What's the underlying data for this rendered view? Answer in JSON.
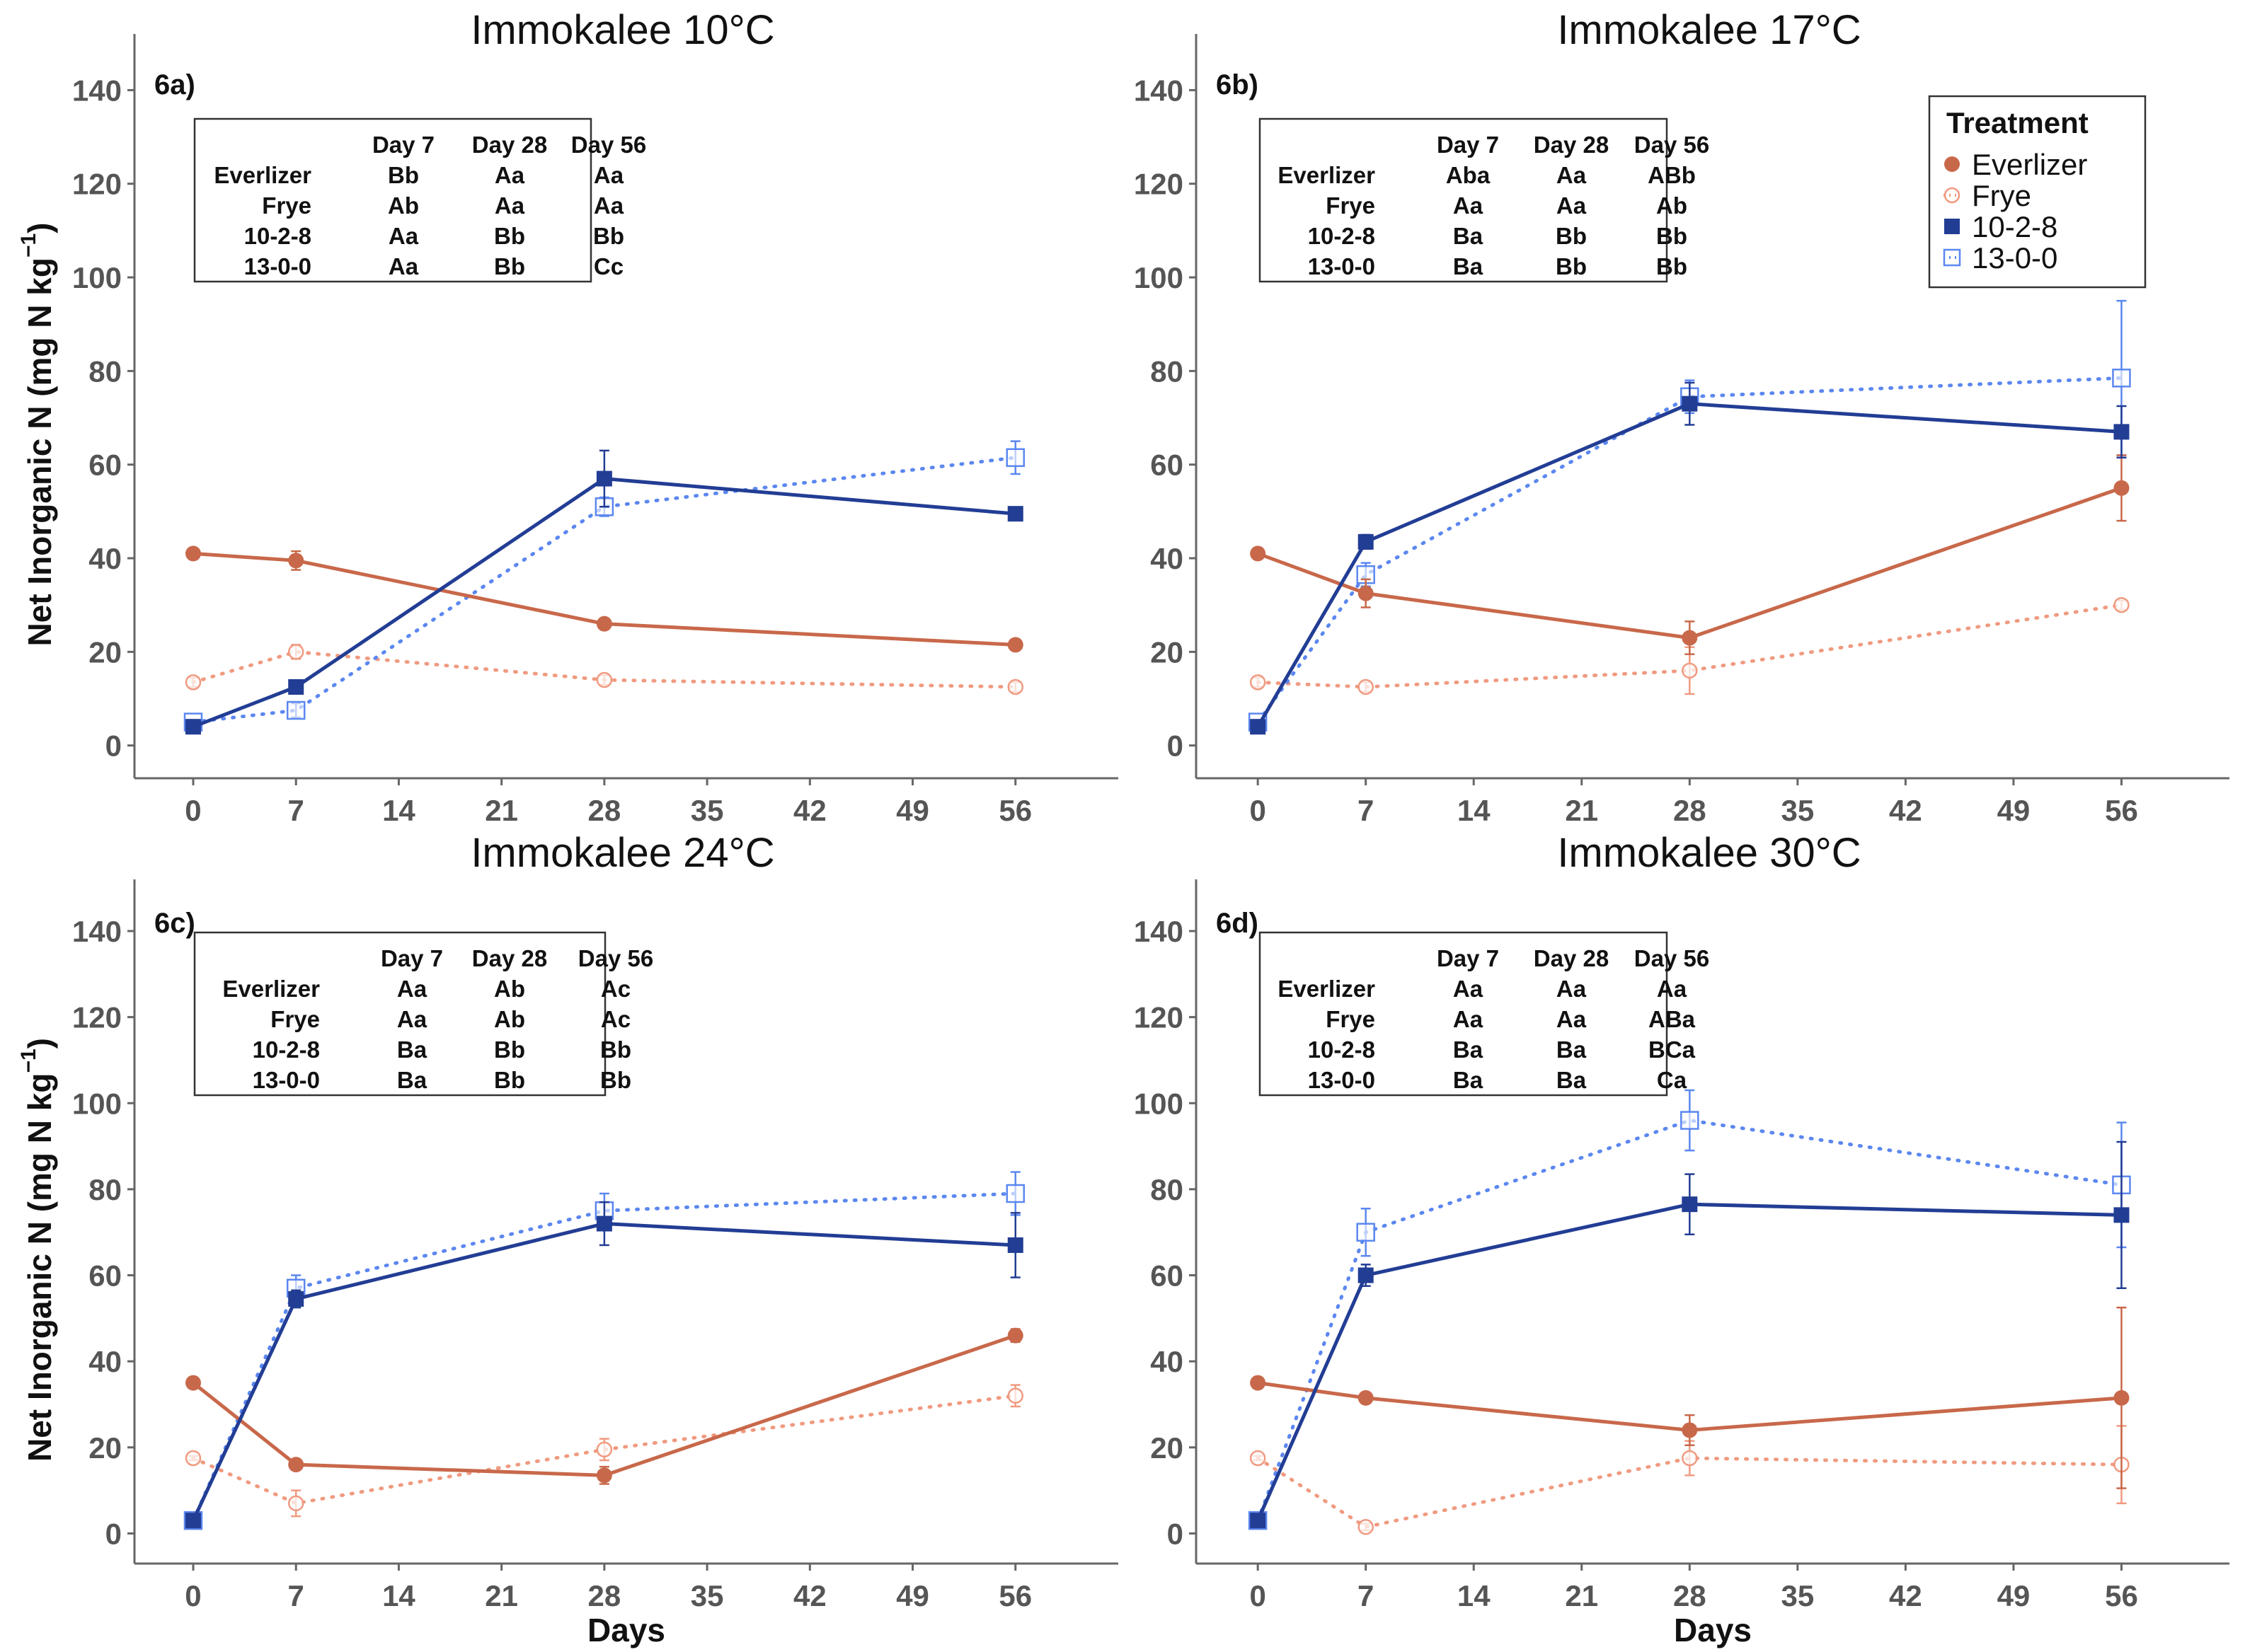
{
  "figure": {
    "ylabel_main": "Net Inorganic N (mg N kg",
    "ylabel_sup": "−1",
    "ylabel_close": ")",
    "xlabel": "Days"
  },
  "legend": {
    "title": "Treatment",
    "items": [
      {
        "label": "Everlizer",
        "color": "#c8684a",
        "marker": "filled-circle",
        "line": "solid"
      },
      {
        "label": "Frye",
        "color": "#f09a80",
        "marker": "open-circle",
        "line": "dotted"
      },
      {
        "label": "10-2-8",
        "color": "#223d94",
        "marker": "filled-square",
        "line": "solid"
      },
      {
        "label": "13-0-0",
        "color": "#5b87f0",
        "marker": "open-square",
        "line": "dotted"
      }
    ]
  },
  "chart_data": [
    {
      "type": "line",
      "panel": "6a)",
      "title": "Immokalee 10°C",
      "xlabel": "",
      "ylabel": "Net Inorganic N (mg N kg−1)",
      "xticks": [
        0,
        7,
        14,
        21,
        28,
        35,
        42,
        49,
        56
      ],
      "yticks": [
        0,
        20,
        40,
        60,
        80,
        100,
        120,
        140
      ],
      "xlim": [
        -4,
        63
      ],
      "ylim": [
        -7,
        152
      ],
      "x": [
        0,
        7,
        28,
        56
      ],
      "series": [
        {
          "name": "Everlizer",
          "values": [
            41,
            39.5,
            26,
            21.5
          ],
          "err": [
            0,
            2,
            0.8,
            0.6
          ]
        },
        {
          "name": "Frye",
          "values": [
            13.5,
            20,
            14,
            12.5
          ],
          "err": [
            1,
            1.5,
            1,
            1
          ]
        },
        {
          "name": "10-2-8",
          "values": [
            4,
            12.5,
            57,
            49.5
          ],
          "err": [
            0,
            1,
            6,
            1
          ]
        },
        {
          "name": "13-0-0",
          "values": [
            5,
            7.5,
            51,
            61.5
          ],
          "err": [
            0.5,
            1.5,
            2,
            3.5
          ]
        }
      ],
      "stats_table": {
        "header": [
          "",
          "Day 7",
          "Day 28",
          "Day 56"
        ],
        "rows": [
          [
            "Everlizer",
            "Bb",
            "Aa",
            "Aa"
          ],
          [
            "Frye",
            "Ab",
            "Aa",
            "Aa"
          ],
          [
            "10-2-8",
            "Aa",
            "Bb",
            "Bb"
          ],
          [
            "13-0-0",
            "Aa",
            "Bb",
            "Cc"
          ]
        ]
      }
    },
    {
      "type": "line",
      "panel": "6b)",
      "title": "Immokalee 17°C",
      "xlabel": "",
      "ylabel": "",
      "xticks": [
        0,
        7,
        14,
        21,
        28,
        35,
        42,
        49,
        56
      ],
      "yticks": [
        0,
        20,
        40,
        60,
        80,
        100,
        120,
        140
      ],
      "xlim": [
        -4,
        63
      ],
      "ylim": [
        -7,
        152
      ],
      "x": [
        0,
        7,
        28,
        56
      ],
      "series": [
        {
          "name": "Everlizer",
          "values": [
            41,
            32.5,
            23,
            55
          ],
          "err": [
            0,
            3,
            3.5,
            7
          ]
        },
        {
          "name": "Frye",
          "values": [
            13.5,
            12.5,
            16,
            30
          ],
          "err": [
            1,
            1,
            5,
            1
          ]
        },
        {
          "name": "10-2-8",
          "values": [
            4,
            43.5,
            73,
            67
          ],
          "err": [
            0,
            1.5,
            4.5,
            5.5
          ]
        },
        {
          "name": "13-0-0",
          "values": [
            5,
            36.5,
            74.5,
            78.5
          ],
          "err": [
            0.5,
            2.5,
            3.5,
            16.5
          ]
        }
      ],
      "stats_table": {
        "header": [
          "",
          "Day 7",
          "Day 28",
          "Day 56"
        ],
        "rows": [
          [
            "Everlizer",
            "Aba",
            "Aa",
            "ABb"
          ],
          [
            "Frye",
            "Aa",
            "Aa",
            "Ab"
          ],
          [
            "10-2-8",
            "Ba",
            "Bb",
            "Bb"
          ],
          [
            "13-0-0",
            "Ba",
            "Bb",
            "Bb"
          ]
        ]
      }
    },
    {
      "type": "line",
      "panel": "6c)",
      "title": "Immokalee 24°C",
      "xlabel": "Days",
      "ylabel": "Net Inorganic N (mg N kg−1)",
      "xticks": [
        0,
        7,
        14,
        21,
        28,
        35,
        42,
        49,
        56
      ],
      "yticks": [
        0,
        20,
        40,
        60,
        80,
        100,
        120,
        140
      ],
      "xlim": [
        -4,
        63
      ],
      "ylim": [
        -7,
        152
      ],
      "x": [
        0,
        7,
        28,
        56
      ],
      "series": [
        {
          "name": "Everlizer",
          "values": [
            35,
            16,
            13.5,
            46
          ],
          "err": [
            0,
            0.8,
            2,
            1.5
          ]
        },
        {
          "name": "Frye",
          "values": [
            17.5,
            7,
            19.5,
            32
          ],
          "err": [
            0.5,
            3,
            2.5,
            2.5
          ]
        },
        {
          "name": "10-2-8",
          "values": [
            3,
            54.5,
            72,
            67
          ],
          "err": [
            0,
            2,
            5,
            7.5
          ]
        },
        {
          "name": "13-0-0",
          "values": [
            3,
            57,
            75,
            79
          ],
          "err": [
            0.3,
            3,
            4,
            5
          ]
        }
      ],
      "stats_table": {
        "header": [
          "",
          "Day 7",
          "Day 28",
          "Day 56"
        ],
        "rows": [
          [
            "Everlizer",
            "Aa",
            "Ab",
            "Ac"
          ],
          [
            "Frye",
            "Aa",
            "Ab",
            "Ac"
          ],
          [
            "10-2-8",
            "Ba",
            "Bb",
            "Bb"
          ],
          [
            "13-0-0",
            "Ba",
            "Bb",
            "Bb"
          ]
        ]
      }
    },
    {
      "type": "line",
      "panel": "6d)",
      "title": "Immokalee 30°C",
      "xlabel": "Days",
      "ylabel": "",
      "xticks": [
        0,
        7,
        14,
        21,
        28,
        35,
        42,
        49,
        56
      ],
      "yticks": [
        0,
        20,
        40,
        60,
        80,
        100,
        120,
        140
      ],
      "xlim": [
        -4,
        63
      ],
      "ylim": [
        -7,
        152
      ],
      "x": [
        0,
        7,
        28,
        56
      ],
      "series": [
        {
          "name": "Everlizer",
          "values": [
            35,
            31.5,
            24,
            31.5
          ],
          "err": [
            0,
            1,
            3.5,
            21
          ]
        },
        {
          "name": "Frye",
          "values": [
            17.5,
            1.5,
            17.5,
            16
          ],
          "err": [
            0.5,
            0.8,
            4,
            9
          ]
        },
        {
          "name": "10-2-8",
          "values": [
            3,
            60,
            76.5,
            74
          ],
          "err": [
            0,
            2.5,
            7,
            17
          ]
        },
        {
          "name": "13-0-0",
          "values": [
            3,
            70,
            96,
            81
          ],
          "err": [
            0.3,
            5.5,
            7,
            14.5
          ]
        }
      ],
      "stats_table": {
        "header": [
          "",
          "Day 7",
          "Day 28",
          "Day 56"
        ],
        "rows": [
          [
            "Everlizer",
            "Aa",
            "Aa",
            "Aa"
          ],
          [
            "Frye",
            "Aa",
            "Aa",
            "ABa"
          ],
          [
            "10-2-8",
            "Ba",
            "Ba",
            "BCa"
          ],
          [
            "13-0-0",
            "Ba",
            "Ba",
            "Ca"
          ]
        ]
      }
    }
  ]
}
